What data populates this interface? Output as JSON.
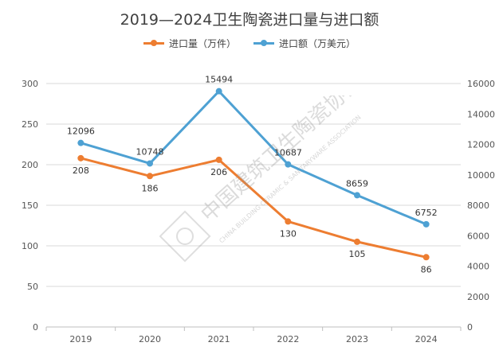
{
  "chart_data": {
    "type": "line",
    "title": "2019—2024卫生陶瓷进口量与进口额",
    "categories": [
      "2019",
      "2020",
      "2021",
      "2022",
      "2023",
      "2024"
    ],
    "series": [
      {
        "name": "进口量（万件）",
        "color": "#ED7D31",
        "axis": "left",
        "values": [
          208,
          186,
          206,
          130,
          105,
          86
        ]
      },
      {
        "name": "进口额（万美元）",
        "color": "#4EA1D3",
        "axis": "right",
        "values": [
          12096,
          10748,
          15494,
          10687,
          8659,
          6752
        ]
      }
    ],
    "y_left": {
      "ylim": [
        0,
        300
      ],
      "ticks": [
        0,
        50,
        100,
        150,
        200,
        250,
        300
      ]
    },
    "y_right": {
      "ylim": [
        0,
        16000
      ],
      "ticks": [
        0,
        2000,
        4000,
        6000,
        8000,
        10000,
        12000,
        14000,
        16000
      ]
    },
    "legend_position": "top",
    "grid": true
  },
  "watermark": {
    "text_cn": "中国建筑卫生陶瓷协会",
    "text_en": "CHINA BUILDING CERAMIC & SANITARYWARE ASSOCIATION"
  }
}
